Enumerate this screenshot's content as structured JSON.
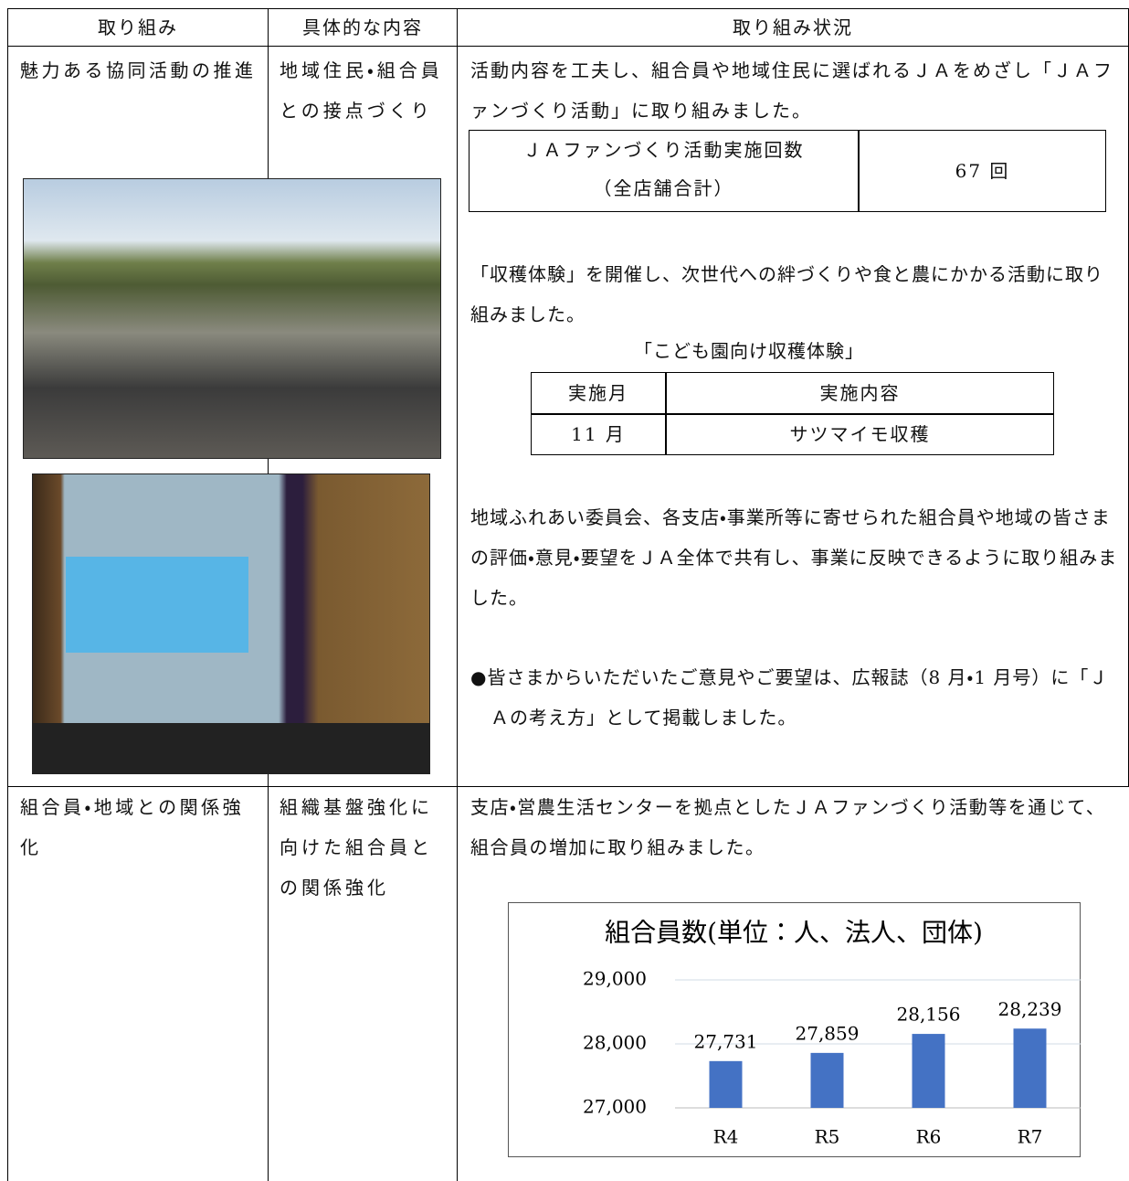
{
  "table": {
    "header": [
      "取り組み",
      "具体的な内容",
      "取り組み状況"
    ],
    "rows": [
      {
        "initiative": "魅力ある協同活動の推進",
        "detail": "地域住民・組合員との接点づくり",
        "status": {
          "p1": "活動内容を工夫し、組合員や地域住民に選ばれるＪＡをめざし「ＪＡファンづくり活動」に取り組みました。",
          "count_table": {
            "label_line1": "ＪＡファンづくり活動実施回数",
            "label_line2": "（全店舗合計）",
            "value": "67 回"
          },
          "p2": "「収穫体験」を開催し、次世代への絆づくりや食と農にかかる活動に取り組みました。",
          "caption": "「こども園向け収穫体験」",
          "event_table": {
            "header": [
              "実施月",
              "実施内容"
            ],
            "row": [
              "11 月",
              "サツマイモ収穫"
            ]
          },
          "p3": "地域ふれあい委員会、各支店・事業所等に寄せられた組合員や地域の皆さまの評価・意見・要望をＪＡ全体で共有し、事業に反映できるように取り組みました。",
          "p4": "●皆さまからいただいたご意見やご要望は、広報誌（8 月・1 月号）に「ＪＡの考え方」として掲載しました。"
        }
      },
      {
        "initiative": "組合員・地域との関係強化",
        "detail": "組織基盤強化に向けた組合員との関係強化",
        "status": {
          "p1": "支店・営農生活センターを拠点としたＪＡファンづくり活動等を通じて、組合員の増加に取り組みました。"
        }
      }
    ]
  },
  "chart_data": {
    "type": "bar",
    "title": "組合員数(単位：人、法人、団体)",
    "categories": [
      "R4",
      "R5",
      "R6",
      "R7"
    ],
    "values": [
      27731,
      27859,
      28156,
      28239
    ],
    "value_labels": [
      "27,731",
      "27,859",
      "28,156",
      "28,239"
    ],
    "color": "#4472c4",
    "ylim": [
      27000,
      29000
    ],
    "yticks": [
      {
        "value": 27000,
        "label": "27,000"
      },
      {
        "value": 28000,
        "label": "28,000"
      },
      {
        "value": 29000,
        "label": "29,000"
      }
    ],
    "grid": true
  }
}
